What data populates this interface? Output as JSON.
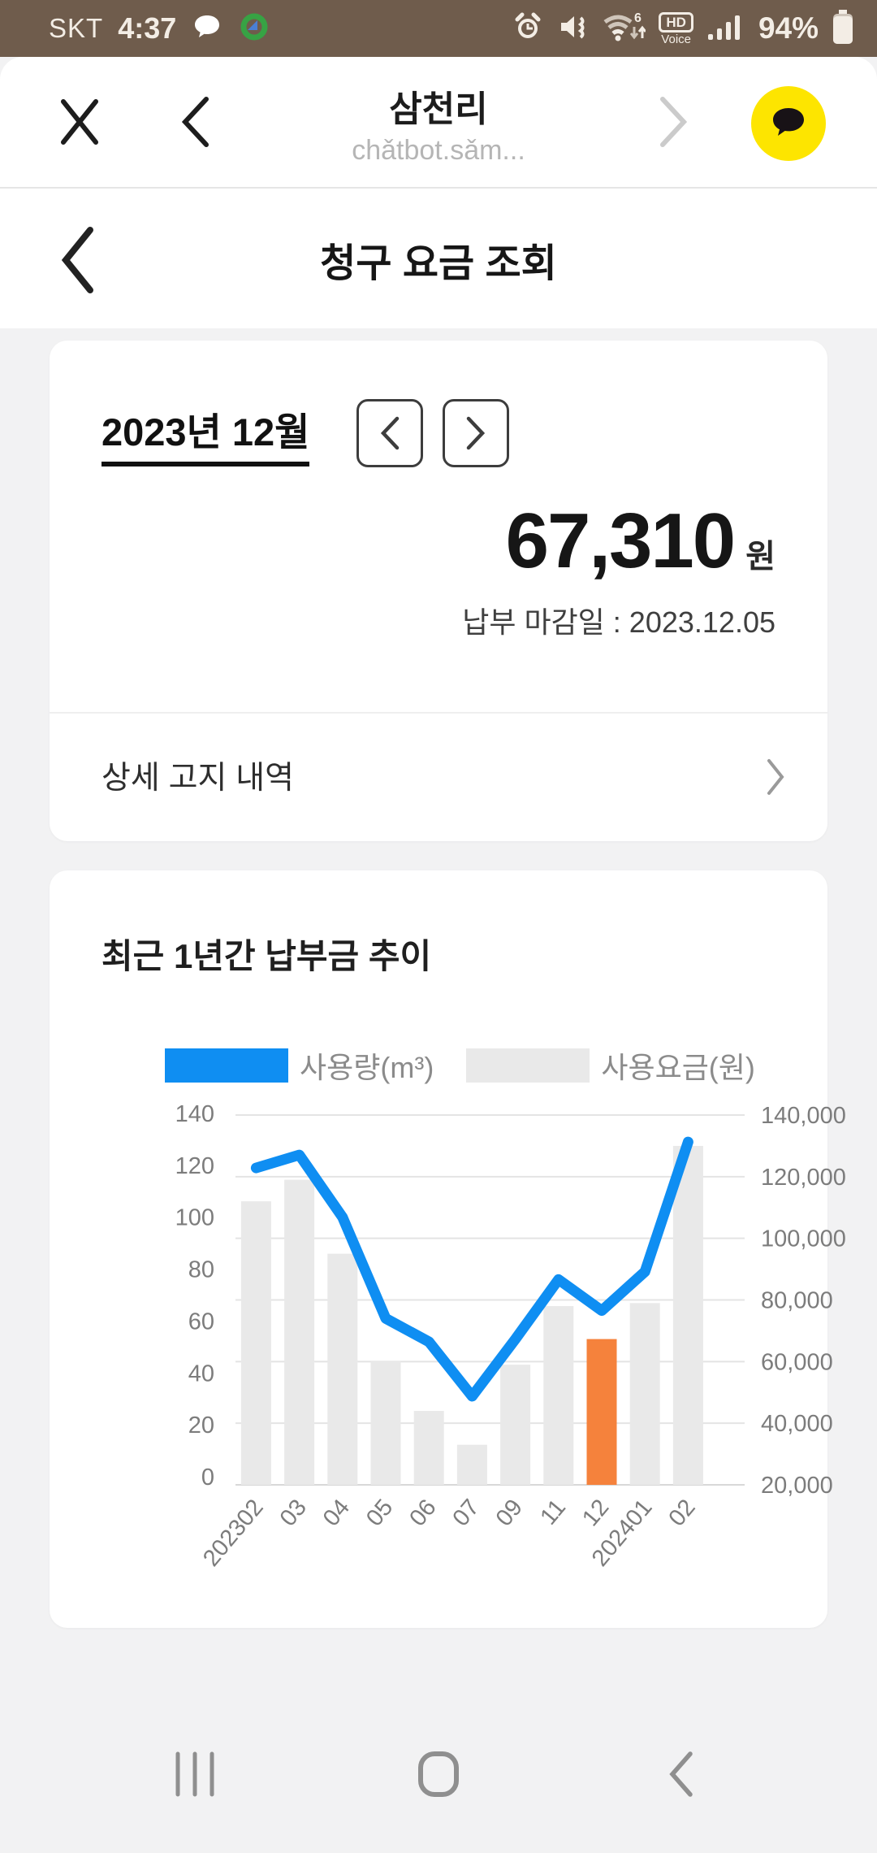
{
  "status_bar": {
    "carrier": "SKT",
    "time": "4:37",
    "battery_pct": "94%",
    "wifi_gen": "6",
    "hd_badge": "HD",
    "voice_badge": "Voice",
    "icons": [
      "kakaotalk-notification-icon",
      "sync-icon",
      "alarm-icon",
      "mute-icon",
      "wifi-icon",
      "hd-voice-badge",
      "signal-icon",
      "battery-icon"
    ]
  },
  "browser_header": {
    "title": "삼천리",
    "url": "chǎtbot.sǎm...",
    "icons": [
      "close-icon",
      "back-icon",
      "forward-icon",
      "kakaotalk-icon"
    ]
  },
  "page_header": {
    "title": "청구 요금 조회"
  },
  "billing_card": {
    "month": "2023년 12월",
    "amount": "67,310",
    "currency": "원",
    "due_date": "납부 마감일 : 2023.12.05",
    "detail_link": "상세 고지 내역"
  },
  "chart_card": {
    "title": "최근 1년간 납부금 추이"
  },
  "chart_data": {
    "type": "bar+line",
    "title": "최근 1년간 납부금 추이",
    "categories": [
      "202302",
      "03",
      "04",
      "05",
      "06",
      "07",
      "09",
      "11",
      "12",
      "202401",
      "02"
    ],
    "series": [
      {
        "name": "사용량(m³)",
        "type": "line",
        "axis": "left",
        "color": "#0f8ef2",
        "values": [
          119,
          124,
          100,
          61,
          52,
          31,
          53,
          76,
          64,
          79,
          129
        ]
      },
      {
        "name": "사용요금(원)",
        "type": "bar",
        "axis": "right",
        "color": "#e9e9e9",
        "values": [
          112000,
          119000,
          95000,
          60000,
          44000,
          33000,
          59000,
          78000,
          67310,
          79000,
          130000
        ],
        "highlight_index": 8,
        "highlight_color": "#f5823c"
      }
    ],
    "left_axis": {
      "min": 0,
      "max": 140,
      "ticks": [
        "140",
        "120",
        "100",
        "80",
        "60",
        "40",
        "20",
        "0"
      ]
    },
    "right_axis": {
      "min": 20000,
      "max": 140000,
      "ticks": [
        "140,000",
        "120,000",
        "100,000",
        "80,000",
        "60,000",
        "40,000",
        "20,000"
      ]
    },
    "legend_position": "top",
    "grid": true
  }
}
